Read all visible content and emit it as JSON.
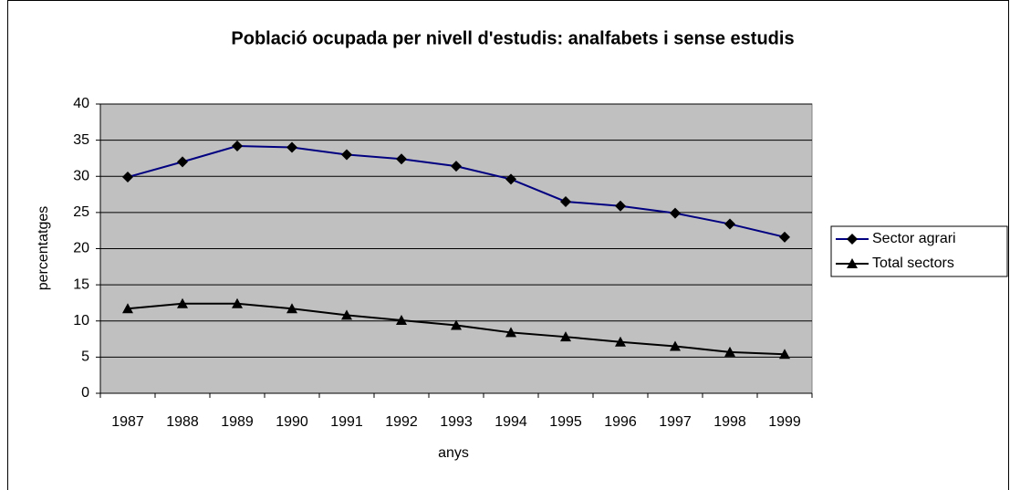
{
  "chart_data": {
    "type": "line",
    "title": "Població ocupada per nivell d'estudis: analfabets i sense estudis",
    "x_label": "anys",
    "y_label": "percentatges",
    "categories": [
      "1987",
      "1988",
      "1989",
      "1990",
      "1991",
      "1992",
      "1993",
      "1994",
      "1995",
      "1996",
      "1997",
      "1998",
      "1999"
    ],
    "series": [
      {
        "name": "Sector agrari",
        "color": "#000080",
        "marker": "diamond",
        "values": [
          29.9,
          32,
          34.2,
          34,
          33,
          32.4,
          31.4,
          29.6,
          26.5,
          25.9,
          24.9,
          23.4,
          21.6
        ]
      },
      {
        "name": "Total sectors",
        "color": "#000000",
        "marker": "triangle",
        "values": [
          11.7,
          12.4,
          12.4,
          11.7,
          10.8,
          10.1,
          9.4,
          8.4,
          7.8,
          7.1,
          6.5,
          5.7,
          5.4
        ]
      }
    ],
    "ylim": [
      0,
      40
    ],
    "yticks": [
      0,
      5,
      10,
      15,
      20,
      25,
      30,
      35,
      40
    ],
    "grid": true,
    "legend": "right",
    "plot_background": "#c0c0c0"
  }
}
